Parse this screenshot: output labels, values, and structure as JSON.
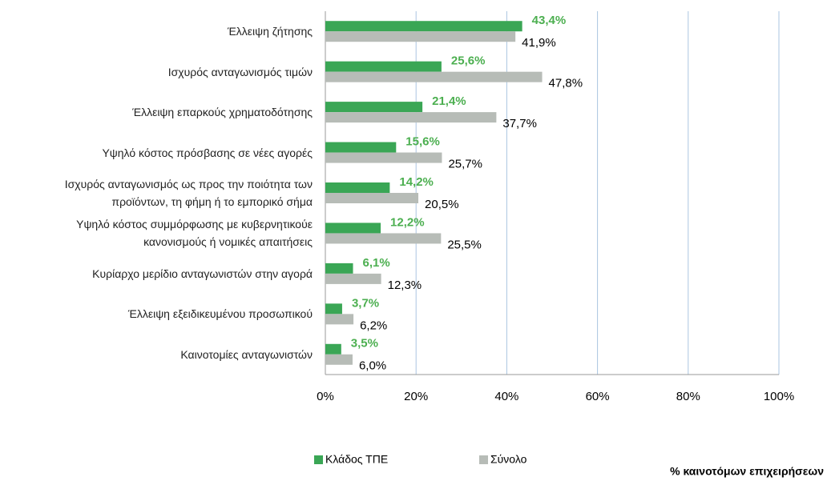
{
  "chart_data": {
    "type": "barh",
    "categories": [
      "Έλλειψη ζήτησης",
      "Ισχυρός ανταγωνισμός τιμών",
      "Έλλειψη επαρκούς χρηματοδότησης",
      "Υψηλό κόστος πρόσβασης σε νέες αγορές",
      "Ισχυρός ανταγωνισμός ως προς την ποιότητα των\nπροϊόντων, τη φήμη ή το εμπορικό σήμα",
      "Υψηλό κόστος συμμόρφωσης με κυβερνητικούε\nκανονισμούς ή νομικές απαιτήσεις",
      "Κυρίαρχο μερίδιο ανταγωνιστών στην αγορά",
      "Έλλειψη εξειδικευμένου προσωπικού",
      "Καινοτομίες ανταγωνιστών"
    ],
    "series": [
      {
        "name": "Κλάδος ΤΠΕ",
        "color": "#3aa655",
        "label_color": "#4caf50",
        "values": [
          43.4,
          25.6,
          21.4,
          15.6,
          14.2,
          12.2,
          6.1,
          3.7,
          3.5
        ],
        "value_labels": [
          "43,4%",
          "25,6%",
          "21,4%",
          "15,6%",
          "14,2%",
          "12,2%",
          "6,1%",
          "3,7%",
          "3,5%"
        ]
      },
      {
        "name": "Σύνολο",
        "color": "#b7bcb7",
        "label_color": "#000000",
        "values": [
          41.9,
          47.8,
          37.7,
          25.7,
          20.5,
          25.5,
          12.3,
          6.2,
          6.0
        ],
        "value_labels": [
          "41,9%",
          "47,8%",
          "37,7%",
          "25,7%",
          "20,5%",
          "25,5%",
          "12,3%",
          "6,2%",
          "6,0%"
        ]
      }
    ],
    "xlim": [
      0,
      100
    ],
    "xticks": [
      {
        "value": 0,
        "label": "0%"
      },
      {
        "value": 20,
        "label": "20%"
      },
      {
        "value": 40,
        "label": "40%"
      },
      {
        "value": 60,
        "label": "60%"
      },
      {
        "value": 80,
        "label": "80%"
      },
      {
        "value": 100,
        "label": "100%"
      }
    ],
    "x_label": "% καινοτόμων επιχειρήσεων",
    "grid": true,
    "legend": "bottom"
  }
}
